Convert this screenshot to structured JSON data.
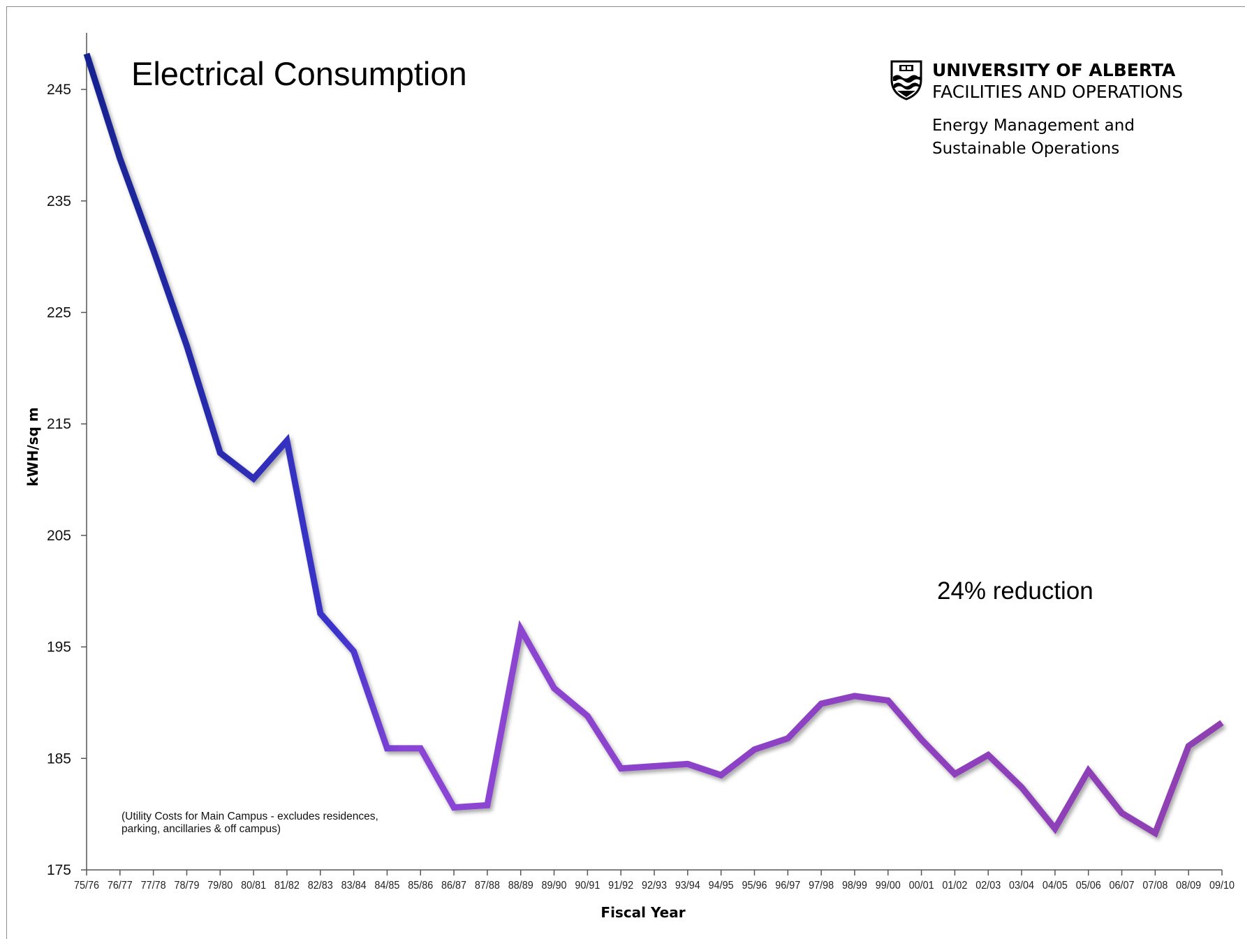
{
  "branding": {
    "university": "UNIVERSITY OF ALBERTA",
    "unit": "FACILITIES AND OPERATIONS",
    "department_line1": "Energy Management and",
    "department_line2": "Sustainable Operations",
    "crest_icon": "university-crest-icon"
  },
  "chart_data": {
    "type": "line",
    "title": "Electrical Consumption",
    "xlabel": "Fiscal Year",
    "ylabel": "kWH/sq m",
    "ylim": [
      175,
      250
    ],
    "yticks": [
      175,
      185,
      195,
      205,
      215,
      225,
      235,
      245
    ],
    "grid": false,
    "legend": "none",
    "categories": [
      "75/76",
      "76/77",
      "77/78",
      "78/79",
      "79/80",
      "80/81",
      "81/82",
      "82/83",
      "83/84",
      "84/85",
      "85/86",
      "86/87",
      "87/88",
      "88/89",
      "89/90",
      "90/91",
      "91/92",
      "92/93",
      "93/94",
      "94/95",
      "95/96",
      "96/97",
      "97/98",
      "98/99",
      "99/00",
      "00/01",
      "01/02",
      "02/03",
      "03/04",
      "04/05",
      "05/06",
      "06/07",
      "07/08",
      "08/09",
      "09/10"
    ],
    "series": [
      {
        "values": [
          248.2,
          238.8,
          230.6,
          222.0,
          212.4,
          210.1,
          213.5,
          198.0,
          194.6,
          185.9,
          185.9,
          180.6,
          180.8,
          196.6,
          191.3,
          188.8,
          184.1,
          184.3,
          184.5,
          183.5,
          185.8,
          186.8,
          189.9,
          190.6,
          190.2,
          186.7,
          183.6,
          185.3,
          182.4,
          178.7,
          183.9,
          180.1,
          178.3,
          186.1,
          188.2
        ],
        "color_start": "#17238f",
        "color_end": "#8f3fb0"
      }
    ],
    "annotations": [
      {
        "text": "24% reduction"
      },
      {
        "text": "(Utility Costs for Main Campus - excludes residences,"
      },
      {
        "text": "parking, ancillaries & off campus)"
      }
    ]
  }
}
